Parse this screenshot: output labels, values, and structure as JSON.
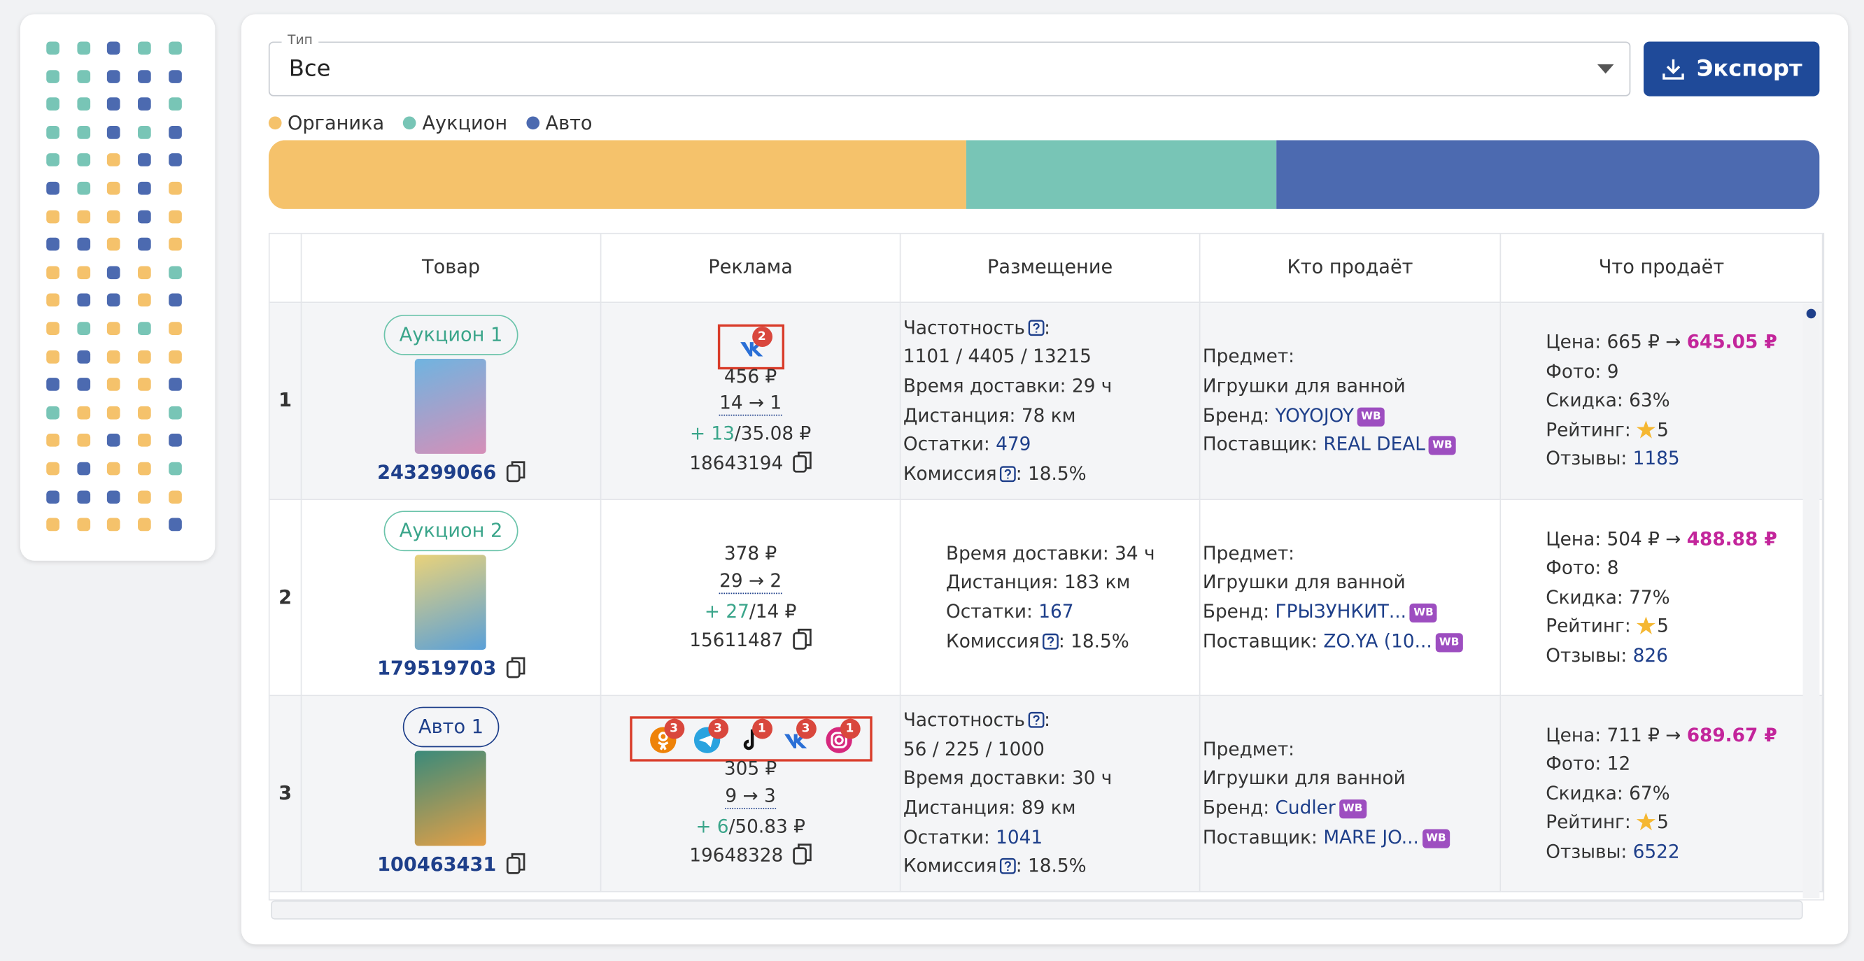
{
  "filter": {
    "label": "Тип",
    "value": "Все"
  },
  "export_button": "Экспорт",
  "legend": [
    {
      "name": "Органика",
      "color": "#f5c26b",
      "share": 45
    },
    {
      "name": "Аукцион",
      "color": "#78c5b6",
      "share": 20
    },
    {
      "name": "Авто",
      "color": "#4c6ab0",
      "share": 35
    }
  ],
  "labels": {
    "frequency": "Частотность",
    "delivery": "Время доставки:",
    "distance": "Дистанция:",
    "stock": "Остатки:",
    "commission": "Комиссия",
    "subject": "Предмет:",
    "brand": "Бренд:",
    "supplier": "Поставщик:",
    "price": "Цена:",
    "arrow": "→",
    "photo": "Фото:",
    "discount": "Скидка:",
    "rating": "Рейтинг:",
    "reviews": "Отзывы:",
    "wb": "WB"
  },
  "table": {
    "headers": [
      "Товар",
      "Реклама",
      "Размещение",
      "Кто продаёт",
      "Что продаёт"
    ],
    "rows": [
      {
        "index": "1",
        "badge": "Аукцион 1",
        "badge_type": "auction",
        "product_id": "243299066",
        "ads": [
          {
            "network": "vk",
            "count": "2"
          }
        ],
        "ad_price": "456 ₽",
        "positions": "14 → 1",
        "growth": "+ 13",
        "cpm": "/35.08 ₽",
        "ad_id": "18643194",
        "frequency_suffix": ":",
        "frequency": "1101 / 4405 / 13215",
        "delivery": "29 ч",
        "distance": "78 км",
        "stock": "479",
        "commission": ": 18.5%",
        "subject": "Игрушки для ванной",
        "brand": "YOYOJOY",
        "supplier": "REAL DEAL",
        "price_old": "665 ₽",
        "price_new": "645.05 ₽",
        "photo": "9",
        "discount": "63%",
        "rating": "5",
        "reviews": "1185"
      },
      {
        "index": "2",
        "badge": "Аукцион 2",
        "badge_type": "auction",
        "product_id": "179519703",
        "ads": [],
        "ad_price": "378 ₽",
        "positions": "29 → 2",
        "growth": "+ 27",
        "cpm": "/14 ₽",
        "ad_id": "15611487",
        "delivery": "34 ч",
        "distance": "183 км",
        "stock": "167",
        "commission": ": 18.5%",
        "subject": "Игрушки для ванной",
        "brand": "ГРЫЗУНКИТ...",
        "supplier": "ZO.YA (10...",
        "price_old": "504 ₽",
        "price_new": "488.88 ₽",
        "photo": "8",
        "discount": "77%",
        "rating": "5",
        "reviews": "826"
      },
      {
        "index": "3",
        "badge": "Авто 1",
        "badge_type": "auto",
        "product_id": "100463431",
        "ads": [
          {
            "network": "ok",
            "count": "3"
          },
          {
            "network": "telegram",
            "count": "3"
          },
          {
            "network": "tiktok",
            "count": "1"
          },
          {
            "network": "vk",
            "count": "3"
          },
          {
            "network": "instagram",
            "count": "1"
          }
        ],
        "ad_price": "305 ₽",
        "positions": "9 → 3",
        "growth": "+ 6",
        "cpm": "/50.83 ₽",
        "ad_id": "19648328",
        "frequency_suffix": ":",
        "frequency": "56 / 225 / 1000",
        "delivery": "30 ч",
        "distance": "89 км",
        "stock": "1041",
        "commission": ": 18.5%",
        "subject": "Игрушки для ванной",
        "brand": "Cudler",
        "supplier": "MARE JO...",
        "price_old": "711 ₽",
        "price_new": "689.67 ₽",
        "photo": "12",
        "discount": "67%",
        "rating": "5",
        "reviews": "6522"
      }
    ]
  }
}
